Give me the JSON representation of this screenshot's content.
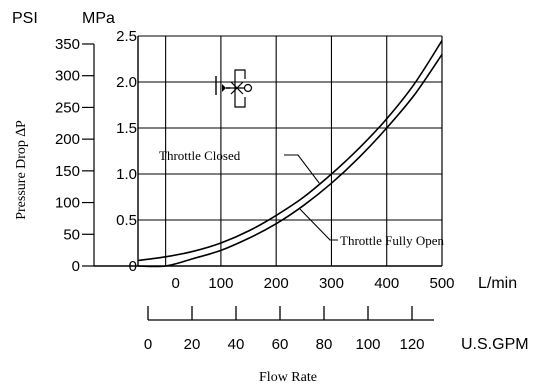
{
  "chart_data": {
    "type": "line",
    "xlabel": "Flow Rate",
    "ylabel": "Pressure Drop ∆P",
    "x_unit": "L/min",
    "x_secondary_unit": "U.S.GPM",
    "y_unit": "MPa",
    "y_secondary_unit": "PSI",
    "xlim": [
      -50,
      500
    ],
    "ylim": [
      0,
      2.5
    ],
    "grid": true,
    "x_ticks": [
      "0",
      "100",
      "200",
      "300",
      "400",
      "500"
    ],
    "x_tick_values": [
      0,
      100,
      200,
      300,
      400,
      500
    ],
    "x_secondary_ticks": [
      "0",
      "20",
      "40",
      "60",
      "80",
      "100",
      "120"
    ],
    "x_secondary_tick_values": [
      0,
      20,
      40,
      60,
      80,
      100,
      120
    ],
    "y_ticks": [
      "0",
      "0.5",
      "1.0",
      "1.5",
      "2.0",
      "2.5"
    ],
    "y_tick_values": [
      0,
      0.5,
      1.0,
      1.5,
      2.0,
      2.5
    ],
    "y_secondary_ticks": [
      "0",
      "50",
      "100",
      "150",
      "200",
      "250",
      "300",
      "350"
    ],
    "y_secondary_tick_values": [
      0,
      50,
      100,
      150,
      200,
      250,
      300,
      350
    ],
    "series": [
      {
        "name": "Throttle Closed",
        "x": [
          -50,
          0,
          50,
          100,
          150,
          200,
          250,
          300,
          350,
          400,
          450,
          500
        ],
        "y": [
          0.06,
          0.1,
          0.16,
          0.25,
          0.38,
          0.55,
          0.75,
          1.0,
          1.28,
          1.6,
          1.98,
          2.45
        ]
      },
      {
        "name": "Throttle Fully Open",
        "x": [
          -50,
          0,
          50,
          100,
          150,
          200,
          250,
          300,
          350,
          400,
          450,
          500
        ],
        "y": [
          0.0,
          0.0,
          0.08,
          0.17,
          0.3,
          0.46,
          0.66,
          0.9,
          1.18,
          1.5,
          1.86,
          2.3
        ]
      }
    ]
  }
}
